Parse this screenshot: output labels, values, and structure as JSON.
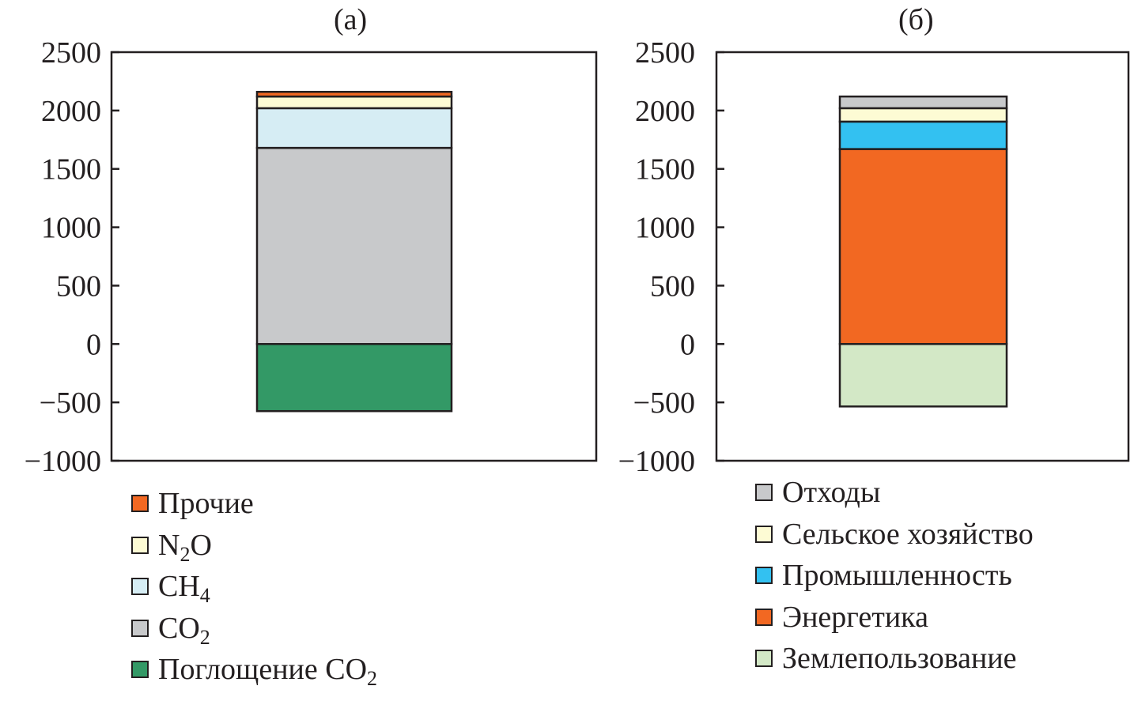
{
  "chart_data": [
    {
      "type": "bar",
      "stacked": true,
      "title": "(a)",
      "xlabel": "",
      "ylabel": "",
      "ylim": [
        -1000,
        2500
      ],
      "yticks": [
        2500,
        2000,
        1500,
        1000,
        500,
        0,
        -500,
        -1000
      ],
      "ytick_labels": [
        "2500",
        "2000",
        "1500",
        "1000",
        "500",
        "0",
        "−500",
        "−1000"
      ],
      "grid": false,
      "series": [
        {
          "name": "Поглощение CO2",
          "value": -575,
          "color": "#339966"
        },
        {
          "name": "CO2",
          "value": 1680,
          "color": "#c8c9cb"
        },
        {
          "name": "CH4",
          "value": 340,
          "color": "#d6edf4"
        },
        {
          "name": "N2O",
          "value": 100,
          "color": "#fdfbd4"
        },
        {
          "name": "Прочие",
          "value": 40,
          "color": "#f26822"
        }
      ],
      "legend": [
        {
          "label": "Прочие",
          "sub": "",
          "after": "",
          "color": "#f26822"
        },
        {
          "label": "N",
          "sub": "2",
          "after": "O",
          "color": "#fdfbd4"
        },
        {
          "label": "CH",
          "sub": "4",
          "after": "",
          "color": "#d6edf4"
        },
        {
          "label": "CO",
          "sub": "2",
          "after": "",
          "color": "#c8c9cb"
        },
        {
          "label": "Поглощение CO",
          "sub": "2",
          "after": "",
          "color": "#339966"
        }
      ]
    },
    {
      "type": "bar",
      "stacked": true,
      "title": "(б)",
      "xlabel": "",
      "ylabel": "",
      "ylim": [
        -1000,
        2500
      ],
      "yticks": [
        2500,
        2000,
        1500,
        1000,
        500,
        0,
        -500,
        -1000
      ],
      "ytick_labels": [
        "2500",
        "2000",
        "1500",
        "1000",
        "500",
        "0",
        "−500",
        "−1000"
      ],
      "grid": false,
      "series": [
        {
          "name": "Землепользование",
          "value": -535,
          "color": "#d3e8c6"
        },
        {
          "name": "Энергетика",
          "value": 1670,
          "color": "#f26822"
        },
        {
          "name": "Промышленность",
          "value": 235,
          "color": "#33c1f1"
        },
        {
          "name": "Сельское хозяйство",
          "value": 115,
          "color": "#fdfbd4"
        },
        {
          "name": "Отходы",
          "value": 100,
          "color": "#c8c9cb"
        }
      ],
      "legend": [
        {
          "label": "Отходы",
          "sub": "",
          "after": "",
          "color": "#c8c9cb"
        },
        {
          "label": "Сельское хозяйство",
          "sub": "",
          "after": "",
          "color": "#fdfbd4"
        },
        {
          "label": "Промышленность",
          "sub": "",
          "after": "",
          "color": "#33c1f1"
        },
        {
          "label": "Энергетика",
          "sub": "",
          "after": "",
          "color": "#f26822"
        },
        {
          "label": "Землепользование",
          "sub": "",
          "after": "",
          "color": "#d3e8c6"
        }
      ]
    }
  ]
}
